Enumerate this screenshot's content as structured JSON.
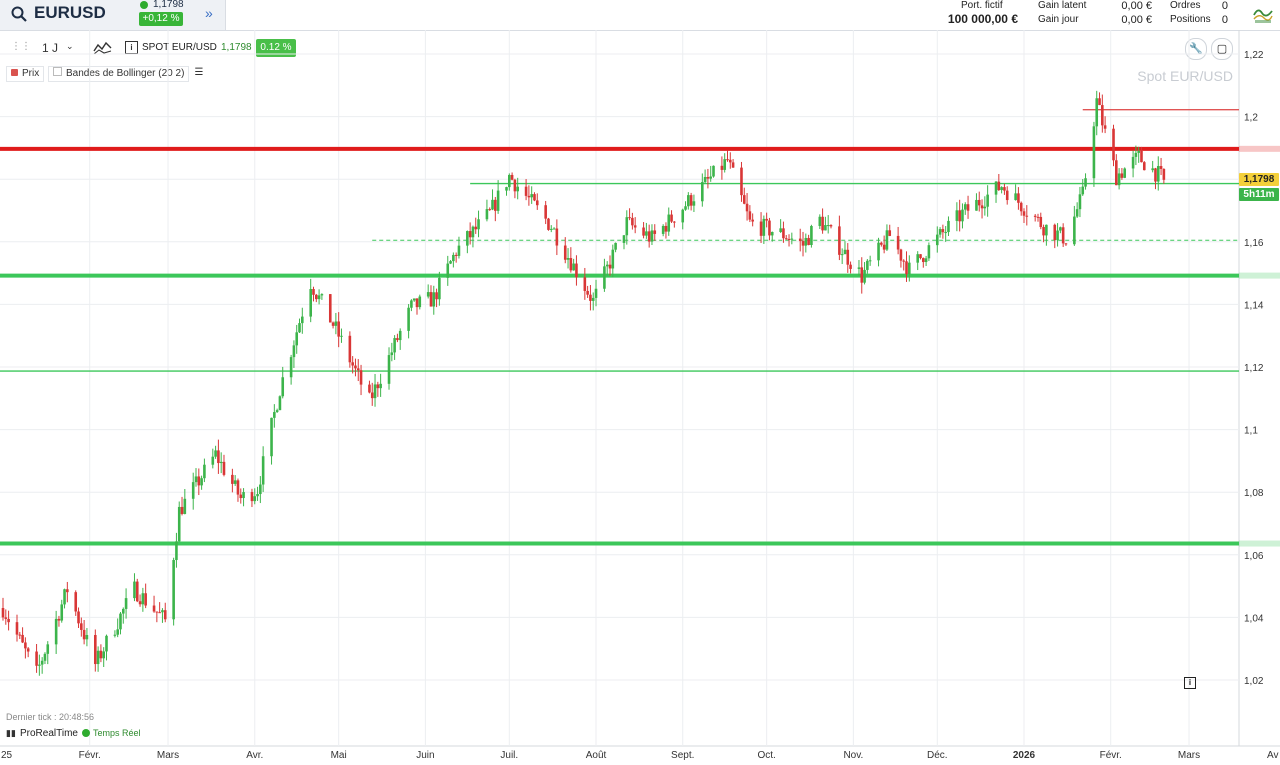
{
  "header": {
    "symbol": "EURUSD",
    "price": "1,1798",
    "change": "+0,12 %",
    "portfolio_label": "Port. fictif",
    "portfolio_value": "100 000,00 €",
    "gain_latent_label": "Gain latent",
    "gain_latent_value": "0,00 €",
    "gain_jour_label": "Gain jour",
    "gain_jour_value": "0,00 €",
    "orders_label": "Ordres",
    "orders_value": "0",
    "positions_label": "Positions",
    "positions_value": "0",
    "expand_icon": "double-chevron-right-icon",
    "search_icon": "search-icon"
  },
  "toolbar": {
    "period": "1 J",
    "instrument": "SPOT EUR/USD",
    "price": "1,1798",
    "pct": "0.12 %",
    "info_icon": "i"
  },
  "legend": {
    "price_label": "Prix",
    "bollinger_label": "Bandes de Bollinger (20 2)"
  },
  "watermark": "Spot EUR/USD",
  "footer": {
    "last_tick": "Dernier tick : 20:48:56",
    "source": "ProRealTime",
    "realtime": "Temps Réel"
  },
  "badges": {
    "price": "1,1798",
    "timer": "5h11m"
  },
  "colors": {
    "up": "#3cb44b",
    "down": "#d93636",
    "support": "#3cc75a",
    "resistance": "#e01b1b",
    "grid": "#eceef1"
  },
  "chart_data": {
    "type": "candlestick",
    "title": "Spot EUR/USD",
    "ylim": [
      1.01,
      1.22
    ],
    "y_ticks": [
      "1,22",
      "1,2",
      "1,18",
      "1,16",
      "1,14",
      "1,12",
      "1,1",
      "1,08",
      "1,06",
      "1,04",
      "1,02"
    ],
    "y_tick_values": [
      1.22,
      1.2,
      1.18,
      1.16,
      1.14,
      1.12,
      1.1,
      1.08,
      1.06,
      1.04,
      1.02
    ],
    "x_ticks": [
      "25",
      "Févr.",
      "Mars",
      "Avr.",
      "Mai",
      "Juin",
      "Juil.",
      "Août",
      "Sept.",
      "Oct.",
      "Nov.",
      "Déc.",
      "2026",
      "Févr.",
      "Mars",
      "Av"
    ],
    "x_tick_dates": [
      "2025-01-01",
      "2025-02-01",
      "2025-03-01",
      "2025-04-01",
      "2025-05-01",
      "2025-06-01",
      "2025-07-01",
      "2025-08-01",
      "2025-09-01",
      "2025-10-01",
      "2025-11-01",
      "2025-12-01",
      "2026-01-01",
      "2026-02-01",
      "2026-03-01",
      "2026-04-01"
    ],
    "date_range": [
      "2025-01-01",
      "2026-02-20"
    ],
    "last_price": 1.1798,
    "horizontal_lines": [
      {
        "level": 1.2022,
        "color": "#e05555",
        "style": "thin",
        "from": "2026-01-22"
      },
      {
        "level": 1.1897,
        "color": "#e01b1b",
        "style": "thick"
      },
      {
        "level": 1.1786,
        "color": "#3cc75a",
        "style": "thin",
        "from": "2025-06-17"
      },
      {
        "level": 1.1605,
        "color": "#3cc75a",
        "style": "dashed",
        "from": "2025-05-13"
      },
      {
        "level": 1.1492,
        "color": "#3cc75a",
        "style": "thick"
      },
      {
        "level": 1.1187,
        "color": "#3cc75a",
        "style": "thin"
      },
      {
        "level": 1.0636,
        "color": "#3cc75a",
        "style": "thick"
      }
    ],
    "anchors": [
      [
        "2025-01-01",
        1.043
      ],
      [
        "2025-01-13",
        1.022
      ],
      [
        "2025-01-24",
        1.049
      ],
      [
        "2025-02-03",
        1.025
      ],
      [
        "2025-02-17",
        1.049
      ],
      [
        "2025-02-28",
        1.039
      ],
      [
        "2025-03-05",
        1.074
      ],
      [
        "2025-03-18",
        1.092
      ],
      [
        "2025-03-27",
        1.078
      ],
      [
        "2025-04-02",
        1.081
      ],
      [
        "2025-04-10",
        1.113
      ],
      [
        "2025-04-21",
        1.147
      ],
      [
        "2025-04-30",
        1.132
      ],
      [
        "2025-05-12",
        1.109
      ],
      [
        "2025-05-27",
        1.139
      ],
      [
        "2025-06-04",
        1.142
      ],
      [
        "2025-06-12",
        1.157
      ],
      [
        "2025-06-24",
        1.169
      ],
      [
        "2025-07-01",
        1.181
      ],
      [
        "2025-07-16",
        1.165
      ],
      [
        "2025-07-31",
        1.141
      ],
      [
        "2025-08-12",
        1.166
      ],
      [
        "2025-08-21",
        1.161
      ],
      [
        "2025-09-01",
        1.171
      ],
      [
        "2025-09-17",
        1.186
      ],
      [
        "2025-09-25",
        1.166
      ],
      [
        "2025-10-08",
        1.162
      ],
      [
        "2025-10-14",
        1.159
      ],
      [
        "2025-10-20",
        1.167
      ],
      [
        "2025-11-04",
        1.149
      ],
      [
        "2025-11-14",
        1.162
      ],
      [
        "2025-11-21",
        1.151
      ],
      [
        "2025-12-01",
        1.161
      ],
      [
        "2025-12-10",
        1.169
      ],
      [
        "2025-12-24",
        1.178
      ],
      [
        "2026-01-08",
        1.165
      ],
      [
        "2026-01-16",
        1.161
      ],
      [
        "2026-01-22",
        1.175
      ],
      [
        "2026-01-27",
        1.205
      ],
      [
        "2026-02-03",
        1.181
      ],
      [
        "2026-02-11",
        1.187
      ],
      [
        "2026-02-20",
        1.1798
      ]
    ]
  }
}
